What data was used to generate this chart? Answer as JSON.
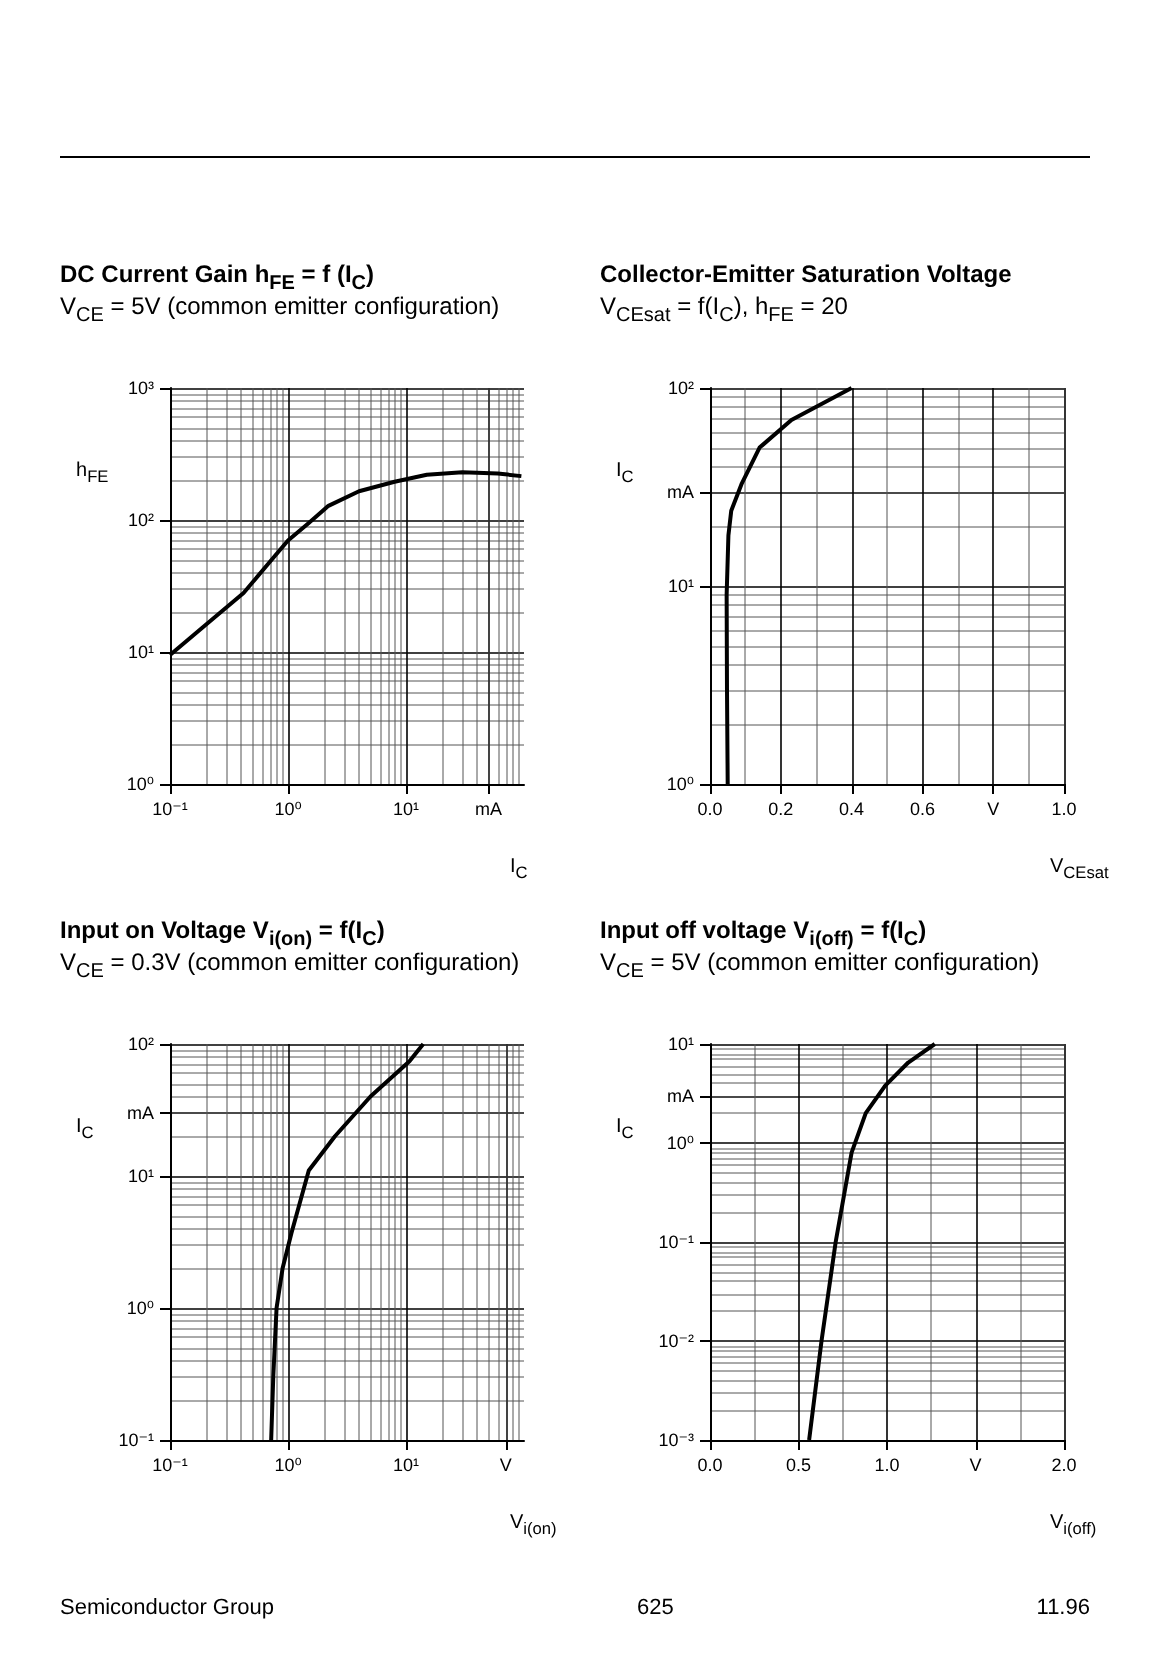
{
  "chart_data": [
    {
      "type": "line",
      "title": "DC Current Gain h$_{FE}$ = f (I$_{C}$)",
      "subtitle": "V$_{CE}$ = 5V (common emitter configuration)",
      "xlabel": "I$_{C}$",
      "ylabel": "h$_{FE}$",
      "log": "xy",
      "grid": true,
      "marker": "none",
      "line_style": "solid",
      "series": [
        {
          "color": "#000000",
          "x": [
            0.1,
            0.2,
            0.42,
            0.7,
            1,
            1.5,
            2.2,
            4,
            8,
            15,
            30,
            60,
            95
          ],
          "values": [
            9.5,
            16,
            28,
            48,
            70,
            95,
            128,
            165,
            195,
            220,
            230,
            225,
            215
          ]
        }
      ],
      "xlim": [
        0.1,
        100
      ],
      "xticks": [
        {
          "value": 0.1,
          "label": "10⁻¹"
        },
        {
          "value": 1,
          "label": "10⁰"
        },
        {
          "value": 10,
          "label": "10¹"
        },
        {
          "value": 50,
          "label": "mA"
        }
      ],
      "ylim": [
        1,
        1000
      ],
      "yticks": [
        {
          "value": 1,
          "label": "10⁰"
        },
        {
          "value": 10,
          "label": "10¹"
        },
        {
          "value": 100,
          "label": "10²"
        },
        {
          "value": 1000,
          "label": "10³"
        }
      ]
    },
    {
      "type": "line",
      "title": "Collector-Emitter Saturation Voltage",
      "subtitle": "V$_{CEsat}$ = f(I$_{C}$), h$_{FE}$ = 20",
      "xlabel": "V$_{CEsat}$",
      "ylabel": "I$_{C}$",
      "log": "y",
      "grid": true,
      "marker": "none",
      "line_style": "solid",
      "series": [
        {
          "color": "#000000",
          "x": [
            0.05,
            0.048,
            0.047,
            0.052,
            0.06,
            0.09,
            0.14,
            0.23,
            0.4
          ],
          "values": [
            1,
            3,
            9,
            18,
            24,
            33,
            50,
            69,
            100
          ]
        }
      ],
      "xlim": [
        0,
        1
      ],
      "xticks": [
        {
          "value": 0,
          "label": "0.0"
        },
        {
          "value": 0.2,
          "label": "0.2"
        },
        {
          "value": 0.4,
          "label": "0.4"
        },
        {
          "value": 0.6,
          "label": "0.6"
        },
        {
          "value": 0.8,
          "label": "V"
        },
        {
          "value": 1,
          "label": "1.0"
        }
      ],
      "ylim": [
        1,
        100
      ],
      "yticks": [
        {
          "value": 1,
          "label": "10⁰"
        },
        {
          "value": 10,
          "label": "10¹"
        },
        {
          "value": 30,
          "label": "mA"
        },
        {
          "value": 100,
          "label": "10²"
        }
      ]
    },
    {
      "type": "line",
      "title": "Input on Voltage V$_{i(on)}$ = f(I$_{C}$)",
      "subtitle": "V$_{CE}$ = 0.3V (common emitter configuration)",
      "xlabel": "V$_{i(on)}$",
      "ylabel": "I$_{C}$",
      "log": "xy",
      "grid": true,
      "marker": "none",
      "line_style": "solid",
      "series": [
        {
          "color": "#000000",
          "x": [
            0.72,
            0.75,
            0.8,
            0.9,
            1.07,
            1.5,
            2.5,
            5,
            10.7,
            14
          ],
          "values": [
            0.1,
            0.3,
            1,
            2,
            3.7,
            11,
            20,
            40,
            74,
            100
          ]
        }
      ],
      "xlim": [
        0.1,
        100
      ],
      "xticks": [
        {
          "value": 0.1,
          "label": "10⁻¹"
        },
        {
          "value": 1,
          "label": "10⁰"
        },
        {
          "value": 10,
          "label": "10¹"
        },
        {
          "value": 70,
          "label": "V"
        }
      ],
      "ylim": [
        0.1,
        100
      ],
      "yticks": [
        {
          "value": 0.1,
          "label": "10⁻¹"
        },
        {
          "value": 1,
          "label": "10⁰"
        },
        {
          "value": 10,
          "label": "10¹"
        },
        {
          "value": 30,
          "label": "mA"
        },
        {
          "value": 100,
          "label": "10²"
        }
      ]
    },
    {
      "type": "line",
      "title": "Input off voltage V$_{i(off)}$ = f(I$_{C}$)",
      "subtitle": "V$_{CE}$ = 5V (common emitter configuration)",
      "xlabel": "V$_{i(off)}$",
      "ylabel": "I$_{C}$",
      "log": "y",
      "grid": true,
      "marker": "none",
      "line_style": "solid",
      "series": [
        {
          "color": "#000000",
          "x": [
            0.56,
            0.63,
            0.71,
            0.8,
            0.88,
            0.99,
            1.12,
            1.27
          ],
          "values": [
            0.001,
            0.01,
            0.1,
            0.8,
            2,
            3.8,
            6.5,
            10
          ]
        }
      ],
      "xlim": [
        0,
        2
      ],
      "xticks": [
        {
          "value": 0,
          "label": "0.0"
        },
        {
          "value": 0.5,
          "label": "0.5"
        },
        {
          "value": 1,
          "label": "1.0"
        },
        {
          "value": 1.5,
          "label": "V"
        },
        {
          "value": 2,
          "label": "2.0"
        }
      ],
      "ylim": [
        0.001,
        10
      ],
      "yticks": [
        {
          "value": 0.001,
          "label": "10⁻³"
        },
        {
          "value": 0.01,
          "label": "10⁻²"
        },
        {
          "value": 0.1,
          "label": "10⁻¹"
        },
        {
          "value": 1,
          "label": "10⁰"
        },
        {
          "value": 3,
          "label": "mA"
        },
        {
          "value": 10,
          "label": "10¹"
        }
      ],
      "annotations": [
        "Semiconductor Group",
        "625",
        "11.96"
      ]
    }
  ]
}
